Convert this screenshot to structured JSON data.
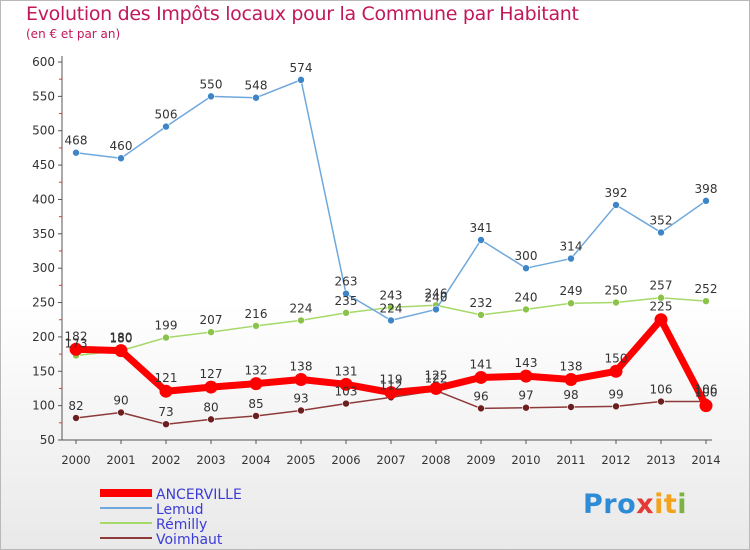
{
  "title": "Evolution des Impôts locaux pour la Commune par Habitant",
  "subtitle": "(en € et par an)",
  "logo": {
    "text": "Proxiti",
    "parts": [
      "Pro",
      "x",
      "it",
      "i"
    ]
  },
  "chart_data": {
    "type": "line",
    "title": "Evolution des Impôts locaux pour la Commune par Habitant",
    "subtitle": "(en € et par an)",
    "x": [
      2000,
      2001,
      2002,
      2003,
      2004,
      2005,
      2006,
      2007,
      2008,
      2009,
      2010,
      2011,
      2012,
      2013,
      2014
    ],
    "ylim": [
      50,
      600
    ],
    "yticks": [
      50,
      100,
      150,
      200,
      250,
      300,
      350,
      400,
      450,
      500,
      550,
      600
    ],
    "grid": false,
    "legend": "bottom-left",
    "series": [
      {
        "name": "ANCERVILLE",
        "color": "#ff0000",
        "marker_color": "#ff0000",
        "values": [
          182,
          180,
          121,
          127,
          132,
          138,
          131,
          119,
          125,
          141,
          143,
          138,
          150,
          225,
          100
        ]
      },
      {
        "name": "Lemud",
        "color": "#6fa8dc",
        "marker_color": "#3d85c6",
        "values": [
          468,
          460,
          506,
          550,
          548,
          574,
          263,
          224,
          240,
          341,
          300,
          314,
          392,
          352,
          398
        ]
      },
      {
        "name": "Rémilly",
        "color": "#a6d96a",
        "marker_color": "#8bc34a",
        "values": [
          173,
          180,
          199,
          207,
          216,
          224,
          235,
          243,
          246,
          232,
          240,
          249,
          250,
          257,
          252
        ]
      },
      {
        "name": "Voimhaut",
        "color": "#8e3a3a",
        "marker_color": "#6b1f1f",
        "values": [
          82,
          90,
          73,
          80,
          85,
          93,
          103,
          112,
          122,
          96,
          97,
          98,
          99,
          106,
          106
        ]
      }
    ],
    "point_labels": [
      {
        "series": "ANCERVILLE",
        "text": [
          "182",
          "180",
          "121",
          "127",
          "132",
          "138",
          "131",
          "119",
          "125",
          "141",
          "143",
          "138",
          "150",
          "225",
          "100"
        ]
      },
      {
        "series": "Lemud",
        "text": [
          "468",
          "460",
          "506",
          "550",
          "548",
          "574",
          "263",
          "224",
          "240",
          "341",
          "300",
          "314",
          "392",
          "352",
          "398"
        ]
      },
      {
        "series": "Rémilly",
        "text": [
          "173",
          "180",
          "199",
          "207",
          "216",
          "224",
          "235",
          "243",
          "246",
          "232",
          "240",
          "249",
          "250",
          "257",
          "252"
        ]
      },
      {
        "series": "Voimhaut",
        "text": [
          "82",
          "90",
          "73",
          "80",
          "85",
          "93",
          "103",
          "112",
          "122",
          "96",
          "97",
          "98",
          "99",
          "106",
          "106"
        ]
      }
    ]
  }
}
